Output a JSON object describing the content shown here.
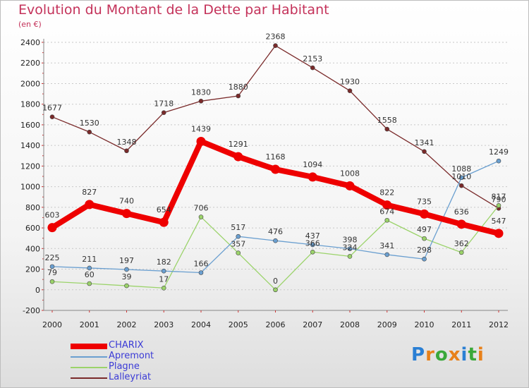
{
  "title": "Evolution du Montant de la Dette par Habitant",
  "subtitle": "(en €)",
  "logo": {
    "letters": [
      "P",
      "r",
      "o",
      "x",
      "i",
      "t",
      "i"
    ],
    "colors": [
      "#2a7fd4",
      "#e8811a",
      "#3aa83a",
      "#e8811a",
      "#2a7fd4",
      "#3aa83a",
      "#e8811a"
    ]
  },
  "chart_data": {
    "type": "line",
    "title": "Evolution du Montant de la Dette par Habitant",
    "ylabel": "(en €)",
    "xlabel": "",
    "categories": [
      "2000",
      "2001",
      "2002",
      "2003",
      "2004",
      "2005",
      "2006",
      "2007",
      "2008",
      "2009",
      "2010",
      "2011",
      "2012"
    ],
    "ylim": [
      -200,
      2400
    ],
    "yticks": [
      "-200",
      "0",
      "200",
      "400",
      "600",
      "800",
      "1000",
      "1200",
      "1400",
      "1600",
      "1800",
      "2000",
      "2200",
      "2400"
    ],
    "grid": "horizontal",
    "legend_position": "bottom-left",
    "series": [
      {
        "name": "CHARIX",
        "color": "#ee0000",
        "values": [
          603,
          827,
          740,
          654,
          1439,
          1291,
          1168,
          1094,
          1008,
          822,
          735,
          636,
          547
        ],
        "labels": [
          "603",
          "827",
          "740",
          "654",
          "1439",
          "1291",
          "1168",
          "1094",
          "1008",
          "822",
          "735",
          "636",
          "547"
        ]
      },
      {
        "name": "Apremont",
        "color": "#6a9fd0",
        "values": [
          225,
          211,
          197,
          182,
          166,
          517,
          476,
          437,
          398,
          341,
          298,
          1088,
          1249
        ],
        "labels": [
          "225",
          "211",
          "197",
          "182",
          "166",
          "517",
          "476",
          "437",
          "398",
          "341",
          "298",
          "1088",
          "1249"
        ]
      },
      {
        "name": "Plagne",
        "color": "#9bd36a",
        "values": [
          79,
          60,
          39,
          17,
          706,
          357,
          0,
          366,
          324,
          674,
          497,
          362,
          817
        ],
        "labels": [
          "79",
          "60",
          "39",
          "17",
          "706",
          "357",
          "0",
          "366",
          "324",
          "674",
          "497",
          "362",
          "817"
        ]
      },
      {
        "name": "Lalleyriat",
        "color": "#7a2a2a",
        "values": [
          1677,
          1530,
          1348,
          1718,
          1830,
          1880,
          2368,
          2153,
          1930,
          1558,
          1341,
          1010,
          790
        ],
        "labels": [
          "1677",
          "1530",
          "1348",
          "1718",
          "1830",
          "1880",
          "2368",
          "2153",
          "1930",
          "1558",
          "1341",
          "1010",
          "790"
        ]
      }
    ]
  }
}
